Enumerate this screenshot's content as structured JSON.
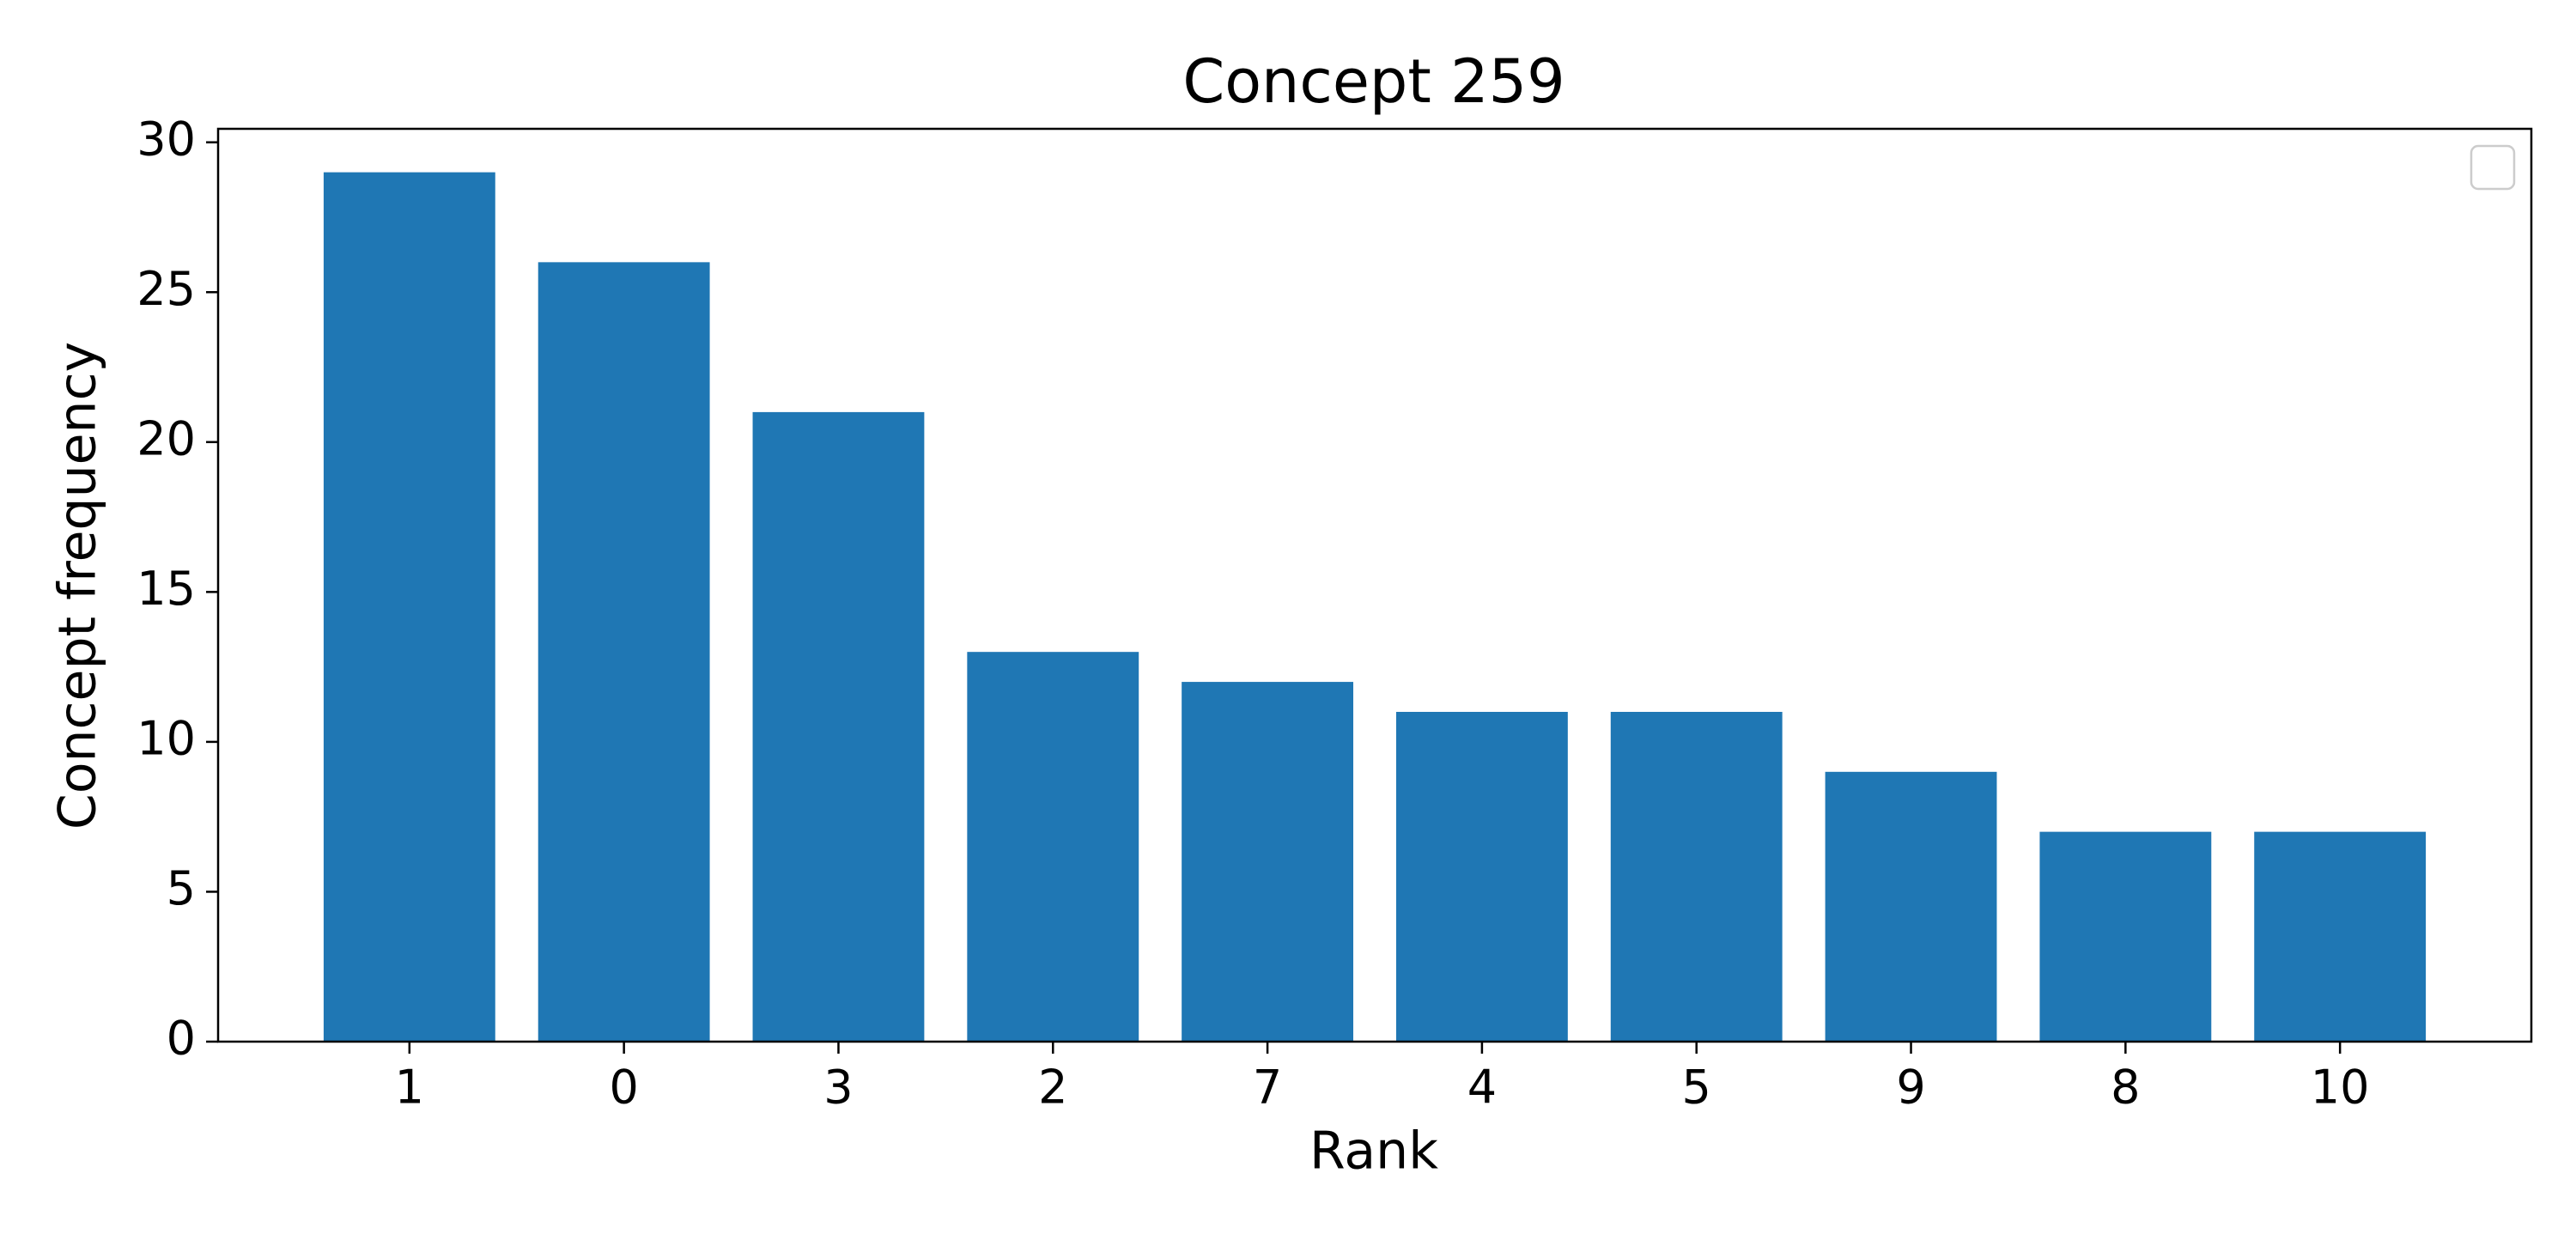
{
  "chart_data": {
    "type": "bar",
    "title": "Concept 259",
    "x_label": "Rank",
    "y_label": "Concept frequency",
    "categories": [
      "1",
      "0",
      "3",
      "2",
      "7",
      "4",
      "5",
      "9",
      "8",
      "10"
    ],
    "values": [
      29,
      26,
      21,
      13,
      12,
      11,
      11,
      9,
      7,
      7
    ],
    "color": "#1f77b4",
    "ylim": [
      0,
      30.45
    ],
    "yticks": [
      0,
      5,
      10,
      15,
      20,
      25,
      30
    ],
    "legend": "upper right"
  }
}
